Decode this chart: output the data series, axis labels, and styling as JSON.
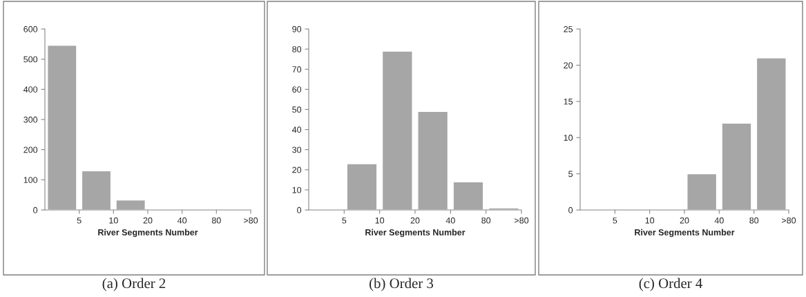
{
  "chart_data": [
    {
      "type": "bar",
      "categories": [
        "5",
        "10",
        "20",
        "40",
        "80",
        ">80"
      ],
      "values": [
        546,
        130,
        33,
        0,
        0,
        0
      ],
      "color": "#a6a6a6",
      "xlabel": "River Segments Number",
      "ylim": [
        0,
        600
      ],
      "yticks": [
        0,
        100,
        200,
        300,
        400,
        500,
        600
      ],
      "grid": false,
      "legend": false,
      "annotations": [
        "(a) Order 2"
      ]
    },
    {
      "type": "bar",
      "categories": [
        "5",
        "10",
        "20",
        "40",
        "80",
        ">80"
      ],
      "values": [
        0,
        23,
        79,
        49,
        14,
        1
      ],
      "color": "#a6a6a6",
      "xlabel": "River Segments Number",
      "ylim": [
        0,
        90
      ],
      "yticks": [
        0,
        10,
        20,
        30,
        40,
        50,
        60,
        70,
        80,
        90
      ],
      "grid": false,
      "legend": false,
      "annotations": [
        "(b) Order 3"
      ]
    },
    {
      "type": "bar",
      "categories": [
        "5",
        "10",
        "20",
        "40",
        "80",
        ">80"
      ],
      "values": [
        0,
        0,
        0,
        5,
        12,
        21
      ],
      "color": "#a6a6a6",
      "xlabel": "River Segments Number",
      "ylim": [
        0,
        25
      ],
      "yticks": [
        0,
        5,
        10,
        15,
        20,
        25
      ],
      "grid": false,
      "legend": false,
      "annotations": [
        "(c) Order 4"
      ]
    }
  ]
}
